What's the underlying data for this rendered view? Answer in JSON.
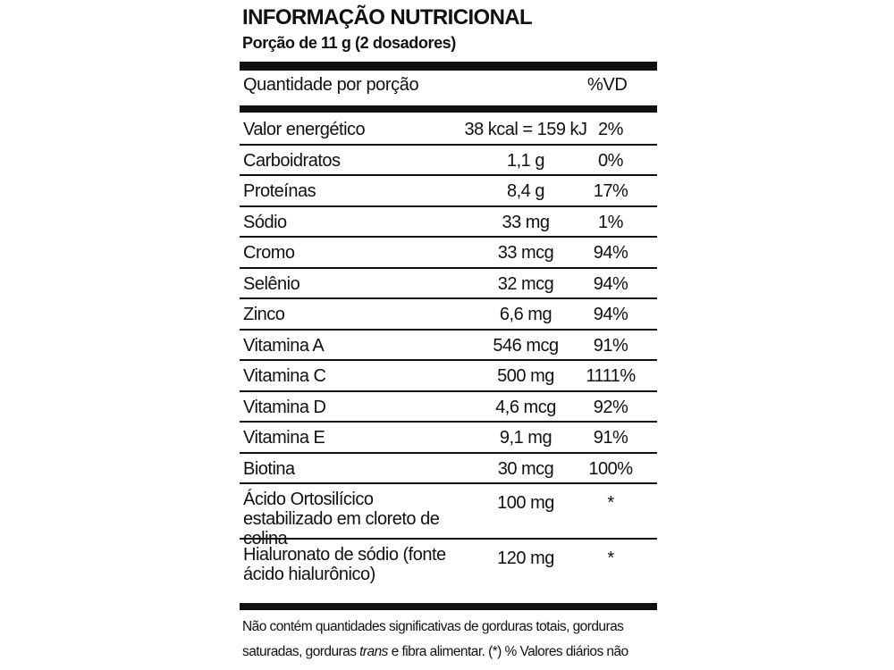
{
  "header": {
    "title": "INFORMAÇÃO NUTRICIONAL",
    "serving": "Porção de 11 g (2 dosadores)"
  },
  "table": {
    "columns": [
      "Quantidade por porção",
      "%VD"
    ],
    "rows": [
      [
        "Valor energético",
        "38 kcal = 159 kJ",
        "2%"
      ],
      [
        "Carboidratos",
        "1,1 g",
        "0%"
      ],
      [
        "Proteínas",
        "8,4 g",
        "17%"
      ],
      [
        "Sódio",
        "33 mg",
        "1%"
      ],
      [
        "Cromo",
        "33 mcg",
        "94%"
      ],
      [
        "Selênio",
        "32 mcg",
        "94%"
      ],
      [
        "Zinco",
        "6,6 mg",
        "94%"
      ],
      [
        "Vitamina A",
        "546 mcg",
        "91%"
      ],
      [
        "Vitamina C",
        "500 mg",
        "1111%"
      ],
      [
        "Vitamina D",
        "4,6 mcg",
        "92%"
      ],
      [
        "Vitamina E",
        "9,1 mg",
        "91%"
      ],
      [
        "Biotina",
        "30 mcg",
        "100%"
      ],
      [
        "Ácido Ortosilícico estabilizado em cloreto de colina",
        "100 mg",
        "*"
      ],
      [
        "Hialuronato de sódio (fonte ácido hialurônico)",
        "120 mg",
        "*"
      ]
    ]
  },
  "footnote": {
    "before": "Não contém quantidades significativas de gorduras totais, gorduras saturadas, gorduras ",
    "italic": "trans",
    "after": " e fibra alimentar. (*) % Valores diários não estabelecidos."
  }
}
